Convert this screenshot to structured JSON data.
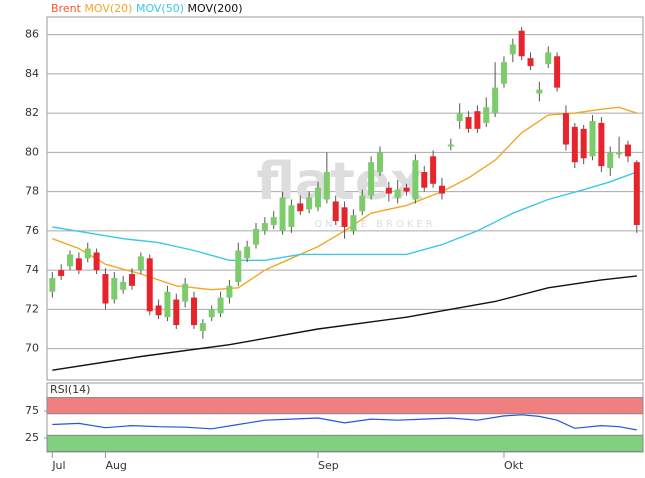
{
  "chart_data": [
    {
      "type": "candlestick",
      "name": "Brent",
      "color": "#f05a28",
      "up_color": "#7ccc6c",
      "down_color": "#e8232b",
      "watermark": [
        "flatex",
        "ONLINE BROKER"
      ],
      "xlim": [
        -0.6,
        66.7
      ],
      "ylim": [
        68.4,
        86.9
      ],
      "yticks": [
        70,
        72,
        74,
        76,
        78,
        80,
        82,
        84,
        86
      ],
      "grid": true,
      "open": [
        72.9,
        74.0,
        74.2,
        74.6,
        74.6,
        74.9,
        73.8,
        72.5,
        73.0,
        73.8,
        74.0,
        74.6,
        72.2,
        71.6,
        72.5,
        72.4,
        72.6,
        70.9,
        71.6,
        71.8,
        72.6,
        73.4,
        74.6,
        75.3,
        76.0,
        76.3,
        76.0,
        76.2,
        77.4,
        77.1,
        77.2,
        77.6,
        77.5,
        77.2,
        76.0,
        77.0,
        77.8,
        79.0,
        78.2,
        77.7,
        78.2,
        77.6,
        79.0,
        79.8,
        78.3,
        80.3,
        81.6,
        81.8,
        82.1,
        81.5,
        82.0,
        83.5,
        85.0,
        86.2,
        84.8,
        83.0,
        84.5,
        84.9,
        82.0,
        81.3,
        81.2,
        79.8,
        81.5,
        79.2,
        79.9,
        80.4,
        79.5
      ],
      "high": [
        73.9,
        74.3,
        75.0,
        74.9,
        75.4,
        75.1,
        74.1,
        73.9,
        73.7,
        74.1,
        74.9,
        74.8,
        72.5,
        73.2,
        72.8,
        73.6,
        72.9,
        71.5,
        72.2,
        72.9,
        73.5,
        75.4,
        75.5,
        76.4,
        76.7,
        77.0,
        78.0,
        77.6,
        77.8,
        78.0,
        78.5,
        80.0,
        77.8,
        77.5,
        77.1,
        78.1,
        79.8,
        80.3,
        78.5,
        78.6,
        78.4,
        79.9,
        79.3,
        80.1,
        78.7,
        80.7,
        82.5,
        82.1,
        82.4,
        82.8,
        84.6,
        84.9,
        85.8,
        86.4,
        85.1,
        83.6,
        85.4,
        85.1,
        82.4,
        81.5,
        81.4,
        81.9,
        81.8,
        80.3,
        80.8,
        80.6,
        79.6
      ],
      "low": [
        72.6,
        73.5,
        74.0,
        73.8,
        74.4,
        73.8,
        72.0,
        72.3,
        72.8,
        73.0,
        73.8,
        71.7,
        71.5,
        71.4,
        71.0,
        72.1,
        71.0,
        70.5,
        71.4,
        71.6,
        72.3,
        73.2,
        74.4,
        75.1,
        75.8,
        76.1,
        75.8,
        75.9,
        76.8,
        76.9,
        77.0,
        77.4,
        76.3,
        75.6,
        75.8,
        76.8,
        77.6,
        78.8,
        77.5,
        77.4,
        77.8,
        77.4,
        78.0,
        78.2,
        77.6,
        80.1,
        81.2,
        81.0,
        81.0,
        81.3,
        81.8,
        83.3,
        84.6,
        84.7,
        84.2,
        82.6,
        84.3,
        83.1,
        80.1,
        79.2,
        79.4,
        79.6,
        79.0,
        78.8,
        79.7,
        79.5,
        75.9
      ],
      "close": [
        73.6,
        73.7,
        74.8,
        74.0,
        75.1,
        74.0,
        72.3,
        73.6,
        73.4,
        73.2,
        74.7,
        71.9,
        71.7,
        72.9,
        71.2,
        73.3,
        71.2,
        71.3,
        72.0,
        72.6,
        73.2,
        75.0,
        75.2,
        76.1,
        76.4,
        76.7,
        77.7,
        77.3,
        77.0,
        77.7,
        78.2,
        79.0,
        76.5,
        76.2,
        76.8,
        77.8,
        79.5,
        80.0,
        77.9,
        78.1,
        78.0,
        79.6,
        78.2,
        78.4,
        77.9,
        80.4,
        82.0,
        81.2,
        81.2,
        82.3,
        83.3,
        84.6,
        85.5,
        84.9,
        84.4,
        83.2,
        85.1,
        83.3,
        80.4,
        79.5,
        79.7,
        81.6,
        79.3,
        80.0,
        80.0,
        79.8,
        76.3
      ],
      "overlays": [
        {
          "name": "MOV(20)",
          "color": "#f5a623",
          "x": [
            0,
            3,
            6,
            10,
            14,
            18,
            21,
            24,
            27,
            30,
            33,
            36,
            40,
            44,
            47,
            50,
            53,
            56,
            59,
            62,
            64,
            66
          ],
          "values": [
            75.6,
            75.1,
            74.3,
            73.8,
            73.2,
            73.0,
            73.1,
            74.0,
            74.6,
            75.2,
            76.0,
            76.9,
            77.3,
            78.0,
            78.7,
            79.6,
            81.0,
            81.9,
            82.0,
            82.2,
            82.3,
            82.0
          ]
        },
        {
          "name": "MOV(50)",
          "color": "#3cc8e8",
          "x": [
            0,
            4,
            8,
            12,
            16,
            20,
            24,
            28,
            32,
            36,
            40,
            44,
            48,
            52,
            56,
            60,
            63,
            66
          ],
          "values": [
            76.2,
            75.9,
            75.6,
            75.4,
            75.0,
            74.5,
            74.5,
            74.8,
            74.8,
            74.8,
            74.8,
            75.3,
            76.0,
            76.9,
            77.6,
            78.1,
            78.5,
            79.0
          ]
        },
        {
          "name": "MOV(200)",
          "color": "#111111",
          "x": [
            0,
            10,
            20,
            30,
            40,
            50,
            56,
            62,
            66
          ],
          "values": [
            68.9,
            69.6,
            70.2,
            71.0,
            71.6,
            72.4,
            73.1,
            73.5,
            73.7
          ]
        }
      ]
    },
    {
      "type": "line",
      "title": "RSI(14)",
      "color": "#2233cc",
      "line_color": "#2255dd",
      "xlim": [
        -0.6,
        66.7
      ],
      "ylim": [
        -1,
        127
      ],
      "yticks": [
        25,
        75
      ],
      "bands": [
        {
          "range": [
            70,
            100
          ],
          "color": "#f08080"
        },
        {
          "range": [
            0,
            30
          ],
          "color": "#80d080"
        }
      ],
      "xticks": [
        {
          "value": 0,
          "label": "Jul"
        },
        {
          "value": 6,
          "label": "Aug"
        },
        {
          "value": 30,
          "label": "Sep"
        },
        {
          "value": 51,
          "label": "Okt"
        }
      ],
      "x": [
        0,
        3,
        6,
        9,
        12,
        15,
        18,
        21,
        24,
        27,
        30,
        33,
        36,
        39,
        42,
        45,
        48,
        51,
        53,
        55,
        57,
        59,
        62,
        64,
        66
      ],
      "values": [
        50,
        52,
        44,
        48,
        46,
        45,
        42,
        50,
        58,
        60,
        62,
        53,
        60,
        58,
        60,
        62,
        58,
        66,
        68,
        65,
        58,
        43,
        48,
        46,
        40
      ]
    }
  ]
}
